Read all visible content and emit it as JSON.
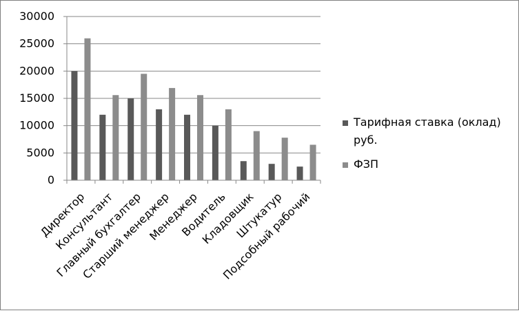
{
  "chart_data": {
    "type": "bar",
    "categories": [
      "Директор",
      "Консультант",
      "Главный бухгалтер",
      "Старший менеджер",
      "Менеджер",
      "Водитель",
      "Кладовщик",
      "Штукатур",
      "Подсобный рабочий"
    ],
    "series": [
      {
        "name": "Тарифная ставка (оклад) руб.",
        "color": "#595959",
        "values": [
          20000,
          12000,
          15000,
          13000,
          12000,
          10000,
          3500,
          3000,
          2500
        ]
      },
      {
        "name": "ФЗП",
        "color": "#8c8c8c",
        "values": [
          26000,
          15600,
          19500,
          16900,
          15600,
          13000,
          9000,
          7800,
          6500
        ]
      }
    ],
    "y_ticks": [
      "0",
      "5000",
      "10000",
      "15000",
      "20000",
      "25000",
      "30000"
    ],
    "ylim": [
      0,
      30000
    ],
    "grid": true,
    "legend_position": "right",
    "legend_lines": [
      [
        "Тарифная ставка (оклад)",
        "руб."
      ],
      [
        "ФЗП"
      ]
    ]
  }
}
